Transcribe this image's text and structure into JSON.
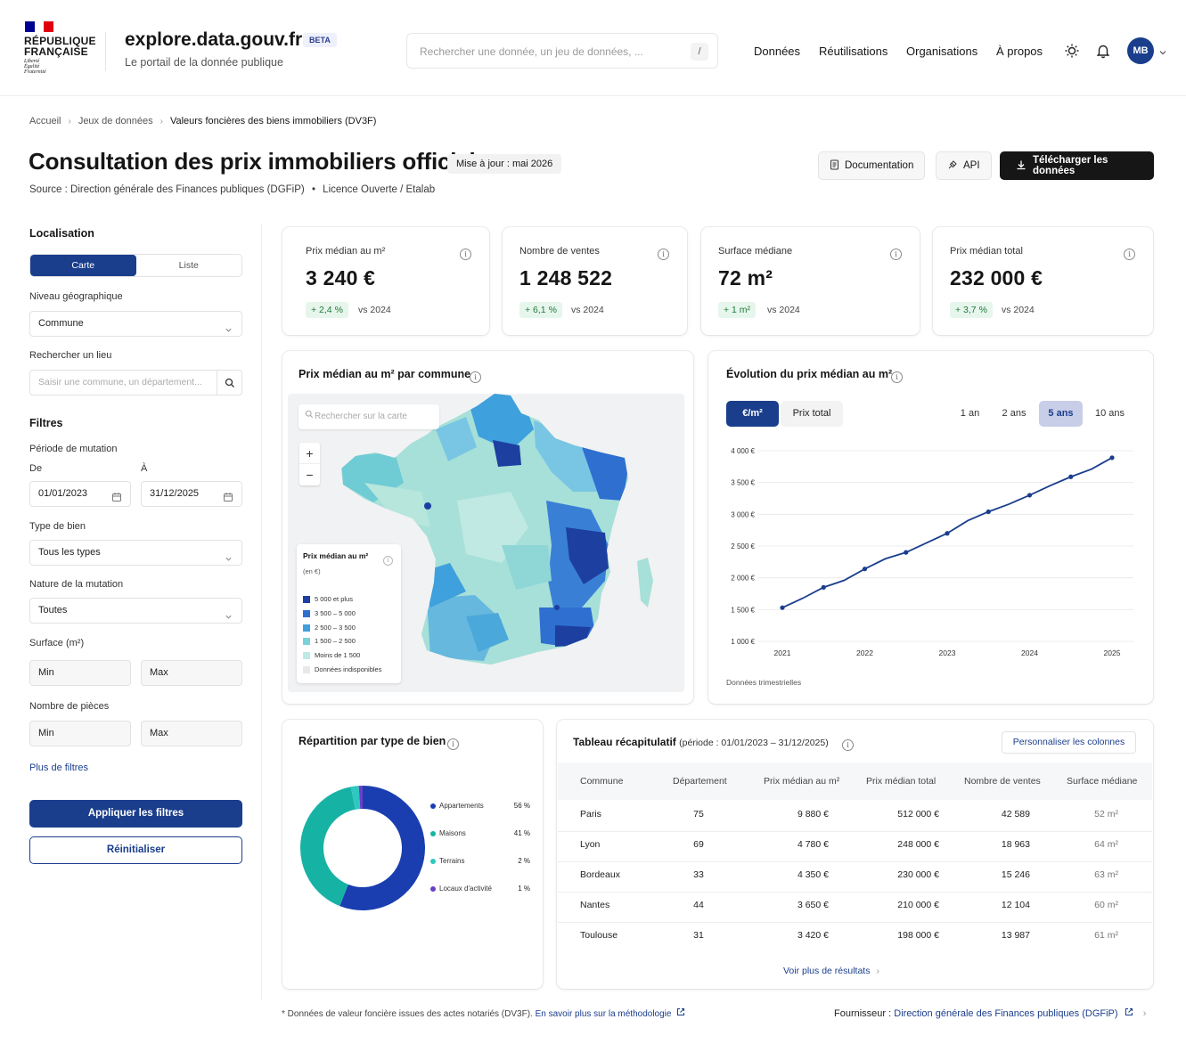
{
  "header": {
    "republic": "RÉPUBLIQUE\nFRANÇAISE",
    "motto": "Liberté\nÉgalité\nFraternité",
    "site_title": "explore.data.gouv.fr",
    "beta": "BETA",
    "tagline": "Le portail de la donnée publique",
    "search_placeholder": "Rechercher une donnée, un jeu de données, ...",
    "search_shortcut": "/",
    "nav": [
      "Données",
      "Réutilisations",
      "Organisations",
      "À propos"
    ],
    "avatar": "MB"
  },
  "breadcrumb": [
    "Accueil",
    "Jeux de données",
    "Valeurs foncières des biens immobiliers (DV3F)"
  ],
  "page": {
    "title": "Consultation des prix immobiliers officiels",
    "updated": "Mise à jour : mai 2026",
    "source": "Source : Direction générale des Finances publiques (DGFiP)",
    "dot": "•",
    "licence": "Licence Ouverte / Etalab",
    "btn_doc": "Documentation",
    "btn_api": "API",
    "btn_download": "Télécharger les données"
  },
  "sidebar": {
    "localisation": "Localisation",
    "view_map": "Carte",
    "view_list": "Liste",
    "geo_level_label": "Niveau géographique",
    "geo_level_value": "Commune",
    "search_place_label": "Rechercher un lieu",
    "search_place_placeholder": "Saisir une commune, un département...",
    "filters": "Filtres",
    "period_label": "Période de mutation",
    "from_label": "De",
    "to_label": "À",
    "from_value": "01/01/2023",
    "to_value": "31/12/2025",
    "type_label": "Type de bien",
    "type_value": "Tous les types",
    "nature_label": "Nature de la mutation",
    "nature_value": "Toutes",
    "surface_label": "Surface (m²)",
    "rooms_label": "Nombre de pièces",
    "min": "Min",
    "max": "Max",
    "more_filters": "Plus de filtres",
    "apply": "Appliquer les filtres",
    "reset": "Réinitialiser"
  },
  "kpis": [
    {
      "title": "Prix médian au m²",
      "value": "3 240 €",
      "delta": "+ 2,4 %",
      "vs": "vs 2024"
    },
    {
      "title": "Nombre de ventes",
      "value": "1 248 522",
      "delta": "+ 6,1 %",
      "vs": "vs 2024"
    },
    {
      "title": "Surface médiane",
      "value": "72 m²",
      "delta": "+ 1 m²",
      "vs": "vs 2024"
    },
    {
      "title": "Prix médian total",
      "value": "232 000 €",
      "delta": "+ 3,7 %",
      "vs": "vs 2024"
    }
  ],
  "map": {
    "title": "Prix médian au m² par commune",
    "search_placeholder": "Rechercher sur la carte",
    "zoom_in": "+",
    "zoom_out": "−",
    "legend_title": "Prix médian au m²",
    "legend_unit": "(en €)",
    "legend": [
      {
        "label": "5 000 et plus",
        "color": "#1d3fa0"
      },
      {
        "label": "3 500 – 5 000",
        "color": "#2f6fd0"
      },
      {
        "label": "2 500 – 3 500",
        "color": "#3ea0dc"
      },
      {
        "label": "1 500 – 2 500",
        "color": "#79d3d8"
      },
      {
        "label": "Moins de 1 500",
        "color": "#bfeae3"
      },
      {
        "label": "Données indisponibles",
        "color": "#e6e8ea"
      }
    ]
  },
  "evolution": {
    "title": "Évolution du prix médian au m²",
    "toggle": [
      "€/m²",
      "Prix total"
    ],
    "periods": [
      "1 an",
      "2 ans",
      "5 ans",
      "10 ans"
    ],
    "active_period": "5 ans",
    "note": "Données trimestrielles"
  },
  "chart_data": {
    "type": "line",
    "x": [
      "2021-T1",
      "2021-T2",
      "2021-T3",
      "2021-T4",
      "2022-T1",
      "2022-T2",
      "2022-T3",
      "2022-T4",
      "2023-T1",
      "2023-T2",
      "2023-T3",
      "2023-T4",
      "2024-T1",
      "2024-T2",
      "2024-T3",
      "2024-T4",
      "2025-T1"
    ],
    "series": [
      {
        "values": [
          1530,
          1680,
          1850,
          1960,
          2140,
          2300,
          2400,
          2550,
          2700,
          2900,
          3040,
          3160,
          3300,
          3450,
          3590,
          3710,
          3890
        ]
      }
    ],
    "x_tick_labels": [
      "2021",
      "2022",
      "2023",
      "2024",
      "2025"
    ],
    "y_tick_labels": [
      "1 000 €",
      "1 500 €",
      "2 000 €",
      "2 500 €",
      "3 000 €",
      "3 500 €",
      "4 000 €"
    ],
    "ylim": [
      1000,
      4000
    ],
    "grid": true,
    "color": "#1a3e8c"
  },
  "donut": {
    "title": "Répartition par type de bien",
    "items": [
      {
        "label": "Appartements",
        "pct": "56 %",
        "value": 56,
        "color": "#1a3eb0"
      },
      {
        "label": "Maisons",
        "pct": "41 %",
        "value": 41,
        "color": "#16b3a5"
      },
      {
        "label": "Terrains",
        "pct": "2 %",
        "value": 2,
        "color": "#2ec8c0"
      },
      {
        "label": "Locaux d'activité",
        "pct": "1 %",
        "value": 1,
        "color": "#6a3fc8"
      }
    ]
  },
  "table": {
    "title": "Tableau récapitulatif",
    "period": "(période : 01/01/2023 – 31/12/2025)",
    "customize": "Personnaliser les colonnes",
    "columns": [
      "Commune",
      "Département",
      "Prix médian au m²",
      "Prix médian total",
      "Nombre de ventes",
      "Surface médiane"
    ],
    "rows": [
      [
        "Paris",
        "75",
        "9 880 €",
        "512 000 €",
        "42 589",
        "52 m²"
      ],
      [
        "Lyon",
        "69",
        "4 780 €",
        "248 000 €",
        "18 963",
        "64 m²"
      ],
      [
        "Bordeaux",
        "33",
        "4 350 €",
        "230 000 €",
        "15 246",
        "63 m²"
      ],
      [
        "Nantes",
        "44",
        "3 650 €",
        "210 000 €",
        "12 104",
        "60 m²"
      ],
      [
        "Toulouse",
        "31",
        "3 420 €",
        "198 000 €",
        "13 987",
        "61 m²"
      ]
    ],
    "more": "Voir plus de résultats"
  },
  "footer": {
    "note": "* Données de valeur foncière issues des actes notariés (DV3F).",
    "method_link": "En savoir plus sur la méthodologie",
    "provider_label": "Fournisseur :",
    "provider_link": "Direction générale des Finances publiques (DGFiP)"
  }
}
